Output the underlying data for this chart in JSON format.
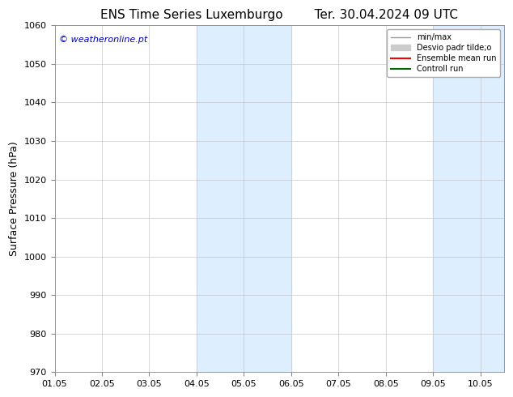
{
  "title_left": "ENS Time Series Luxemburgo",
  "title_right": "Ter. 30.04.2024 09 UTC",
  "ylabel": "Surface Pressure (hPa)",
  "ylim": [
    970,
    1060
  ],
  "yticks": [
    970,
    980,
    990,
    1000,
    1010,
    1020,
    1030,
    1040,
    1050,
    1060
  ],
  "xlim_start": 0,
  "xlim_end": 9.5,
  "xtick_labels": [
    "01.05",
    "02.05",
    "03.05",
    "04.05",
    "05.05",
    "06.05",
    "07.05",
    "08.05",
    "09.05",
    "10.05"
  ],
  "xtick_positions": [
    0,
    1,
    2,
    3,
    4,
    5,
    6,
    7,
    8,
    9
  ],
  "shaded_regions": [
    {
      "xmin": 3.0,
      "xmax": 5.0,
      "color": "#ddeeff"
    },
    {
      "xmin": 8.0,
      "xmax": 9.5,
      "color": "#ddeeff"
    }
  ],
  "watermark_text": "© weatheronline.pt",
  "watermark_color": "#0000bb",
  "legend_entries": [
    {
      "label": "min/max",
      "color": "#999999",
      "lw": 1.0,
      "type": "line"
    },
    {
      "label": "Desvio padr tilde;o",
      "color": "#cccccc",
      "lw": 5,
      "type": "bar"
    },
    {
      "label": "Ensemble mean run",
      "color": "#ff0000",
      "lw": 1.5,
      "type": "line"
    },
    {
      "label": "Controll run",
      "color": "#006600",
      "lw": 1.5,
      "type": "line"
    }
  ],
  "bg_color": "#ffffff",
  "grid_color": "#bbbbbb",
  "title_fontsize": 11,
  "tick_fontsize": 8,
  "ylabel_fontsize": 9,
  "watermark_fontsize": 8
}
